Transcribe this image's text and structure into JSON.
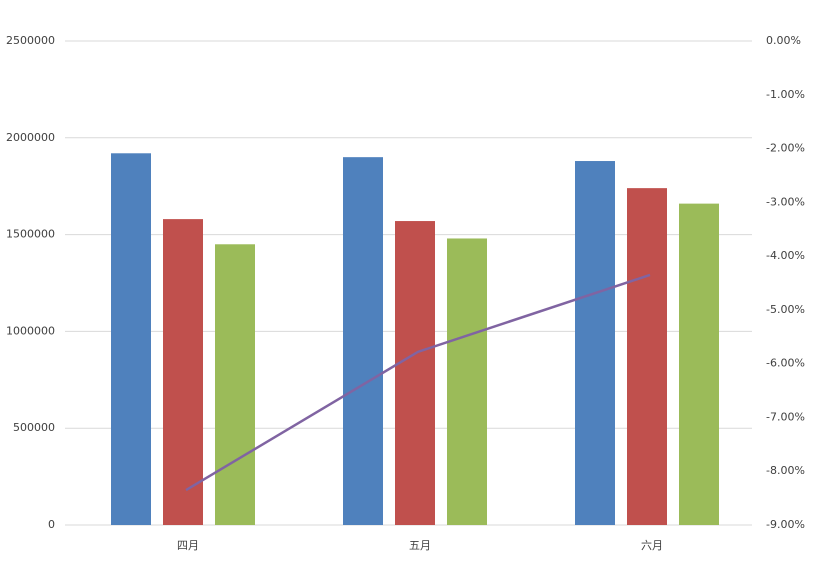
{
  "chart_data": {
    "type": "bar-line",
    "categories": [
      "四月",
      "五月",
      "六月"
    ],
    "series": [
      {
        "color": "#4f81bd",
        "values": [
          1920000,
          1900000,
          1880000
        ]
      },
      {
        "color": "#c0504d",
        "values": [
          1580000,
          1570000,
          1740000
        ]
      },
      {
        "color": "#9bbb59",
        "values": [
          1450000,
          1480000,
          1660000
        ]
      },
      {
        "type": "line",
        "axis": "y2",
        "color": "#8064a2",
        "values": [
          -8.35,
          -5.78,
          -4.35
        ]
      }
    ],
    "ylim": [
      0,
      2500000
    ],
    "yticks": [
      0,
      500000,
      1000000,
      1500000,
      2000000,
      2500000
    ],
    "y2lim": [
      -9,
      0
    ],
    "y2ticks": [
      {
        "value": 0,
        "label": "0.00%"
      },
      {
        "value": -1,
        "label": "-1.00%"
      },
      {
        "value": -2,
        "label": "-2.00%"
      },
      {
        "value": -3,
        "label": "-3.00%"
      },
      {
        "value": -4,
        "label": "-4.00%"
      },
      {
        "value": -5,
        "label": "-5.00%"
      },
      {
        "value": -6,
        "label": "-6.00%"
      },
      {
        "value": -7,
        "label": "-7.00%"
      },
      {
        "value": -8,
        "label": "-8.00%"
      },
      {
        "value": -9,
        "label": "-9.00%"
      }
    ],
    "grid": true
  }
}
